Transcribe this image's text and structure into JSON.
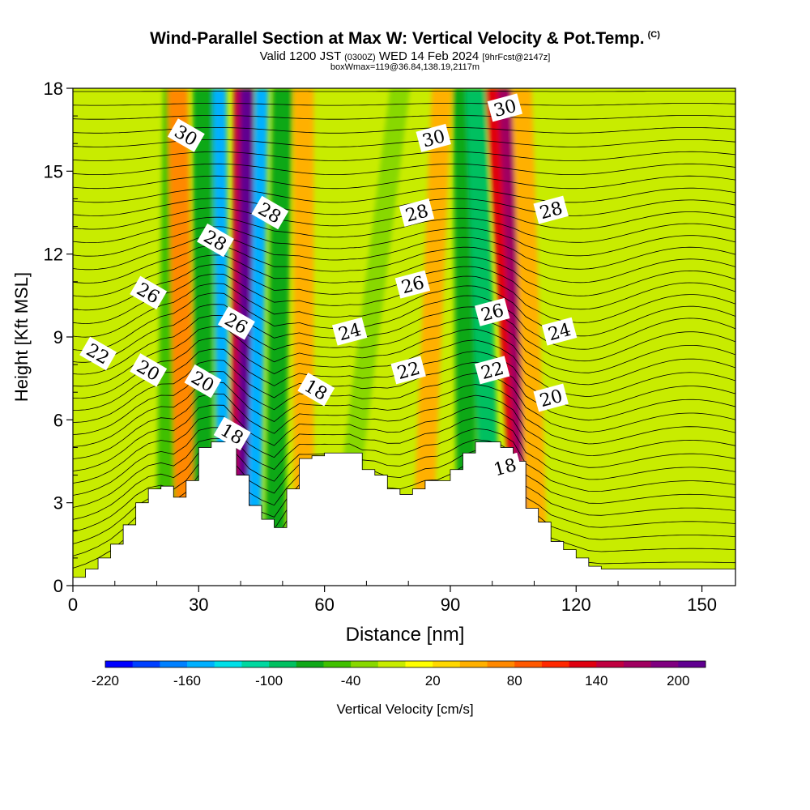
{
  "header": {
    "title": "Wind-Parallel Section at Max W: Vertical Velocity & Pot.Temp.",
    "title_tag": "(C)",
    "valid_prefix": "Valid 1200 JST",
    "valid_z": "(0300Z)",
    "valid_date": "WED 14 Feb 2024",
    "valid_fcst": "[9hrFcst@2147z]",
    "box_line": "boxWmax=119@36.84,138.19,2117m"
  },
  "chart_data": {
    "type": "heatmap",
    "xlabel": "Distance [nm]",
    "ylabel": "Height [Kft MSL]",
    "xlim": [
      0,
      158
    ],
    "ylim": [
      0,
      18
    ],
    "x_ticks": [
      0,
      30,
      60,
      90,
      120,
      150
    ],
    "y_ticks": [
      0,
      3,
      6,
      9,
      12,
      15,
      18
    ],
    "colorbar": {
      "label": "Vertical Velocity [cm/s]",
      "min": -220,
      "max": 220,
      "tick_labels": [
        -220,
        -160,
        -100,
        -40,
        20,
        80,
        140,
        200
      ],
      "colors": [
        "#0000ff",
        "#0040ff",
        "#0080ff",
        "#00b0ff",
        "#00e0e8",
        "#00d8a0",
        "#00c060",
        "#10a818",
        "#40c000",
        "#88d800",
        "#c8ec00",
        "#ffff00",
        "#ffd800",
        "#ffb000",
        "#ff8800",
        "#ff5800",
        "#ff2800",
        "#e00010",
        "#c00040",
        "#a00060",
        "#800080",
        "#600090"
      ]
    },
    "velocity_bands": [
      {
        "x_bottom": 22,
        "x_top": 24,
        "value": -60
      },
      {
        "x_bottom": 27,
        "x_top": 25,
        "value": 60
      },
      {
        "x_bottom": 31,
        "x_top": 31,
        "value": -80
      },
      {
        "x_bottom": 36,
        "x_top": 35,
        "value": -160
      },
      {
        "x_bottom": 39,
        "x_top": 40,
        "value": 140
      },
      {
        "x_bottom": 41,
        "x_top": 41.5,
        "value": 210
      },
      {
        "x_bottom": 43,
        "x_top": 45,
        "value": -150
      },
      {
        "x_bottom": 48,
        "x_top": 50,
        "value": -80
      },
      {
        "x_bottom": 55,
        "x_top": 55,
        "value": 50
      },
      {
        "x_bottom": 63,
        "x_top": 78,
        "value": -30
      },
      {
        "x_bottom": 83,
        "x_top": 88,
        "value": 40
      },
      {
        "x_bottom": 94,
        "x_top": 93,
        "value": -70
      },
      {
        "x_bottom": 100,
        "x_top": 96,
        "value": -100
      },
      {
        "x_bottom": 107,
        "x_top": 100,
        "value": 130
      },
      {
        "x_bottom": 108,
        "x_top": 103,
        "value": 170
      },
      {
        "x_bottom": 111,
        "x_top": 107,
        "value": 40
      }
    ],
    "terrain": {
      "x": [
        0,
        3,
        6,
        9,
        12,
        15,
        18,
        21,
        24,
        27,
        30,
        33,
        36,
        39,
        42,
        45,
        48,
        51,
        54,
        57,
        60,
        63,
        66,
        69,
        72,
        75,
        78,
        81,
        84,
        87,
        90,
        93,
        96,
        99,
        102,
        105,
        108,
        111,
        114,
        117,
        120,
        123,
        126,
        129,
        132,
        135,
        138,
        141,
        144,
        147,
        150,
        153,
        156,
        158
      ],
      "height": [
        0.3,
        0.6,
        1.0,
        1.5,
        2.2,
        3.0,
        3.5,
        3.6,
        3.2,
        3.8,
        5.0,
        5.2,
        5.2,
        4.0,
        2.9,
        2.4,
        2.1,
        3.5,
        4.6,
        4.7,
        4.8,
        4.8,
        4.8,
        4.2,
        4.0,
        3.5,
        3.3,
        3.5,
        3.8,
        3.8,
        4.2,
        4.8,
        5.2,
        5.2,
        5.0,
        4.5,
        2.8,
        2.3,
        1.6,
        1.3,
        1.0,
        0.7,
        0.6,
        0.6,
        0.6,
        0.6,
        0.6,
        0.6,
        0.6,
        0.6,
        0.6,
        0.6,
        0.6,
        0.6
      ]
    },
    "theta_contours": [
      {
        "value": 18,
        "label": "18",
        "label_at": [
          38,
          5.5
        ]
      },
      {
        "value": 18,
        "label": "18",
        "label_at": [
          58,
          7.1
        ]
      },
      {
        "value": 18,
        "label": "18",
        "label_at": [
          103,
          4.3
        ]
      },
      {
        "value": 20,
        "label": "20",
        "label_at": [
          18,
          7.8
        ]
      },
      {
        "value": 20,
        "label": "20",
        "label_at": [
          31,
          7.4
        ]
      },
      {
        "value": 20,
        "label": "20",
        "label_at": [
          114,
          6.8
        ]
      },
      {
        "value": 22,
        "label": "22",
        "label_at": [
          6,
          8.4
        ]
      },
      {
        "value": 22,
        "label": "22",
        "label_at": [
          80,
          7.8
        ]
      },
      {
        "value": 22,
        "label": "22",
        "label_at": [
          100,
          7.8
        ]
      },
      {
        "value": 24,
        "label": "24",
        "label_at": [
          66,
          9.2
        ]
      },
      {
        "value": 24,
        "label": "24",
        "label_at": [
          116,
          9.2
        ]
      },
      {
        "value": 26,
        "label": "26",
        "label_at": [
          18,
          10.6
        ]
      },
      {
        "value": 26,
        "label": "26",
        "label_at": [
          39,
          9.5
        ]
      },
      {
        "value": 26,
        "label": "26",
        "label_at": [
          81,
          10.9
        ]
      },
      {
        "value": 26,
        "label": "26",
        "label_at": [
          100,
          9.9
        ]
      },
      {
        "value": 28,
        "label": "28",
        "label_at": [
          34,
          12.5
        ]
      },
      {
        "value": 28,
        "label": "28",
        "label_at": [
          47,
          13.5
        ]
      },
      {
        "value": 28,
        "label": "28",
        "label_at": [
          82,
          13.5
        ]
      },
      {
        "value": 28,
        "label": "28",
        "label_at": [
          114,
          13.6
        ]
      },
      {
        "value": 30,
        "label": "30",
        "label_at": [
          27,
          16.3
        ]
      },
      {
        "value": 30,
        "label": "30",
        "label_at": [
          86,
          16.2
        ]
      },
      {
        "value": 30,
        "label": "30",
        "label_at": [
          103,
          17.3
        ]
      }
    ]
  }
}
